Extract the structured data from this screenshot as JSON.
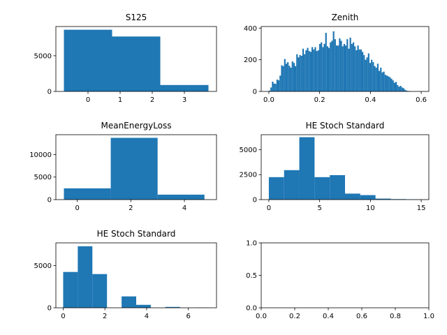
{
  "chart_data": [
    {
      "type": "bar",
      "title": "S125",
      "xlim": [
        -1.0,
        4.0
      ],
      "ylim": [
        0,
        9100
      ],
      "xticks": [
        0,
        1,
        2,
        3
      ],
      "yticks": [
        0,
        5000
      ],
      "grid": false,
      "bins": [
        {
          "x0": -0.75,
          "x1": 0.75,
          "y": 8650
        },
        {
          "x0": 0.75,
          "x1": 2.25,
          "y": 7700
        },
        {
          "x0": 2.25,
          "x1": 3.75,
          "y": 900
        }
      ]
    },
    {
      "type": "bar",
      "title": "Zenith",
      "xlim": [
        -0.03,
        0.63
      ],
      "ylim": [
        0,
        410
      ],
      "xticks": [
        0.0,
        0.2,
        0.4,
        0.6
      ],
      "yticks": [
        0,
        200,
        400
      ],
      "grid": false,
      "bin_range": [
        0.0,
        0.6
      ],
      "values": [
        5,
        25,
        62,
        50,
        48,
        75,
        70,
        100,
        165,
        160,
        205,
        175,
        185,
        162,
        150,
        190,
        180,
        160,
        235,
        215,
        230,
        225,
        270,
        235,
        260,
        275,
        255,
        250,
        280,
        265,
        280,
        255,
        260,
        300,
        310,
        280,
        300,
        370,
        285,
        275,
        310,
        320,
        380,
        330,
        290,
        290,
        335,
        320,
        285,
        300,
        290,
        330,
        270,
        340,
        300,
        310,
        285,
        260,
        290,
        265,
        265,
        250,
        230,
        200,
        215,
        240,
        180,
        200,
        185,
        160,
        150,
        175,
        130,
        150,
        120,
        125,
        105,
        100,
        95,
        90,
        80,
        70,
        55,
        60,
        40,
        30,
        35,
        25,
        20,
        10,
        5,
        3,
        2,
        1,
        0,
        0,
        0,
        0,
        0,
        1
      ]
    },
    {
      "type": "bar",
      "title": "MeanEnergyLoss",
      "xlim": [
        -0.8,
        5.2
      ],
      "ylim": [
        0,
        14400
      ],
      "xticks": [
        0,
        2,
        4
      ],
      "yticks": [
        0,
        5000,
        10000
      ],
      "grid": false,
      "bins": [
        {
          "x0": -0.5,
          "x1": 1.25,
          "y": 2500
        },
        {
          "x0": 1.25,
          "x1": 3.0,
          "y": 13700
        },
        {
          "x0": 3.0,
          "x1": 4.75,
          "y": 1100
        }
      ]
    },
    {
      "type": "bar",
      "title": "HE Stoch Standard",
      "xlim": [
        -0.75,
        15.75
      ],
      "ylim": [
        0,
        6500
      ],
      "xticks": [
        0,
        5,
        10,
        15
      ],
      "yticks": [
        0,
        2500,
        5000
      ],
      "grid": false,
      "bins": [
        {
          "x0": 0.0,
          "x1": 1.5,
          "y": 2250
        },
        {
          "x0": 1.5,
          "x1": 3.0,
          "y": 2950
        },
        {
          "x0": 3.0,
          "x1": 4.5,
          "y": 6250
        },
        {
          "x0": 4.5,
          "x1": 6.0,
          "y": 2250
        },
        {
          "x0": 6.0,
          "x1": 7.5,
          "y": 2450
        },
        {
          "x0": 7.5,
          "x1": 9.0,
          "y": 600
        },
        {
          "x0": 9.0,
          "x1": 10.5,
          "y": 450
        },
        {
          "x0": 10.5,
          "x1": 12.0,
          "y": 100
        },
        {
          "x0": 12.0,
          "x1": 13.5,
          "y": 50
        },
        {
          "x0": 13.5,
          "x1": 15.0,
          "y": 20
        }
      ]
    },
    {
      "type": "bar",
      "title": "HE Stoch Standard",
      "xlim": [
        -0.35,
        7.35
      ],
      "ylim": [
        0,
        7700
      ],
      "xticks": [
        0,
        2,
        4,
        6
      ],
      "yticks": [
        0,
        5000
      ],
      "grid": false,
      "bins": [
        {
          "x0": 0.0,
          "x1": 0.7,
          "y": 4250
        },
        {
          "x0": 0.7,
          "x1": 1.4,
          "y": 7300
        },
        {
          "x0": 1.4,
          "x1": 2.1,
          "y": 4000
        },
        {
          "x0": 2.1,
          "x1": 2.8,
          "y": 0
        },
        {
          "x0": 2.8,
          "x1": 3.5,
          "y": 1350
        },
        {
          "x0": 3.5,
          "x1": 4.2,
          "y": 350
        },
        {
          "x0": 4.2,
          "x1": 4.9,
          "y": 0
        },
        {
          "x0": 4.9,
          "x1": 5.6,
          "y": 100
        },
        {
          "x0": 5.6,
          "x1": 6.3,
          "y": 0
        },
        {
          "x0": 6.3,
          "x1": 7.0,
          "y": 20
        }
      ]
    },
    {
      "type": "bar",
      "title": "",
      "xlim": [
        0.0,
        1.0
      ],
      "ylim": [
        0.0,
        1.0
      ],
      "xticks": [
        0.0,
        0.2,
        0.4,
        0.6,
        0.8,
        1.0
      ],
      "yticks": [
        0.0,
        0.5,
        1.0
      ],
      "grid": false,
      "bins": []
    }
  ]
}
